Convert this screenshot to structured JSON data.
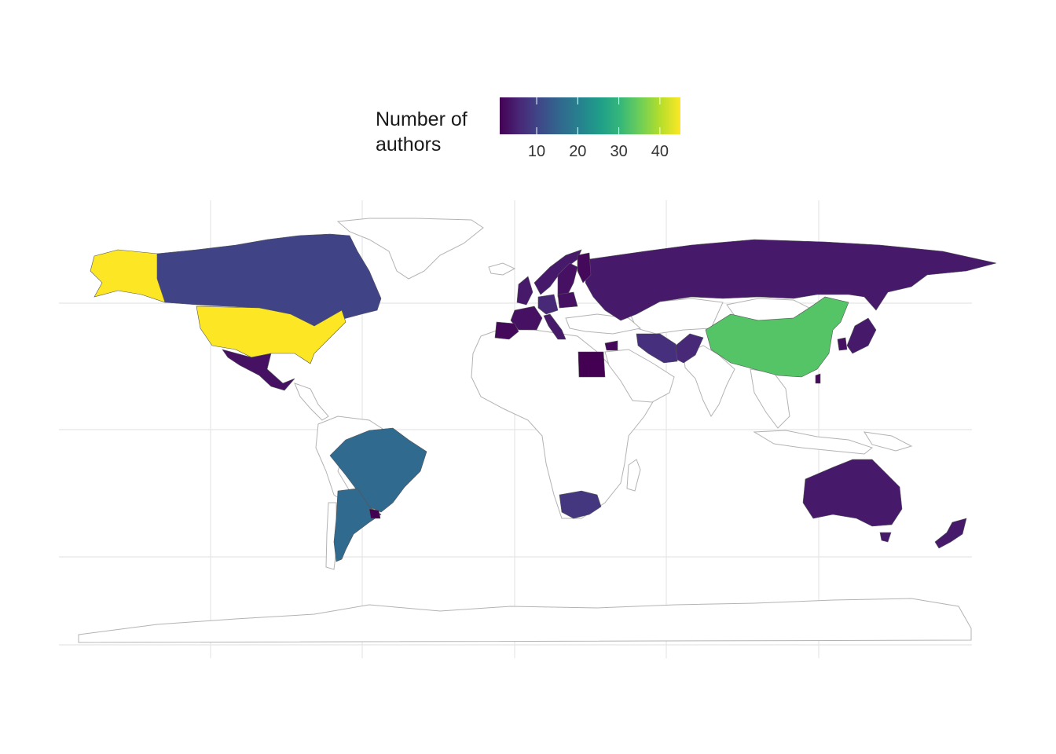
{
  "legend": {
    "title": "Number of\nauthors",
    "scale": "viridis",
    "min": 1,
    "max": 45,
    "ticks": [
      10,
      20,
      30,
      40
    ]
  },
  "colors": {
    "background": "#ffffff",
    "no_data_fill": "#ffffff",
    "border": "#b3b3b3",
    "grid": "#e5e5e5",
    "viridis": [
      "#440154",
      "#482878",
      "#3e4989",
      "#31688e",
      "#26828e",
      "#1f9e89",
      "#35b779",
      "#6ece58",
      "#b5de2b",
      "#fde725"
    ]
  },
  "chart_data": {
    "type": "choropleth",
    "projection": "equirectangular",
    "metric": "Number of authors",
    "grid": true,
    "legend_position": "top",
    "regions": [
      {
        "name": "United States",
        "value": 45
      },
      {
        "name": "China",
        "value": 33
      },
      {
        "name": "Brazil",
        "value": 16
      },
      {
        "name": "Argentina",
        "value": 16
      },
      {
        "name": "Canada",
        "value": 10
      },
      {
        "name": "South Africa",
        "value": 8
      },
      {
        "name": "Iran",
        "value": 7
      },
      {
        "name": "Pakistan",
        "value": 6
      },
      {
        "name": "Russia",
        "value": 4
      },
      {
        "name": "Australia",
        "value": 4
      },
      {
        "name": "New Zealand",
        "value": 4
      },
      {
        "name": "Mexico",
        "value": 3
      },
      {
        "name": "Norway",
        "value": 4
      },
      {
        "name": "Sweden",
        "value": 3
      },
      {
        "name": "Finland",
        "value": 2
      },
      {
        "name": "United Kingdom",
        "value": 4
      },
      {
        "name": "France",
        "value": 3
      },
      {
        "name": "Spain",
        "value": 2
      },
      {
        "name": "Portugal",
        "value": 2
      },
      {
        "name": "Germany",
        "value": 6
      },
      {
        "name": "Italy",
        "value": 4
      },
      {
        "name": "Poland",
        "value": 3
      },
      {
        "name": "Japan",
        "value": 4
      },
      {
        "name": "South Korea",
        "value": 3
      },
      {
        "name": "Taiwan",
        "value": 2
      },
      {
        "name": "Egypt",
        "value": 1
      },
      {
        "name": "Israel",
        "value": 2
      },
      {
        "name": "Uruguay",
        "value": 1
      }
    ]
  }
}
